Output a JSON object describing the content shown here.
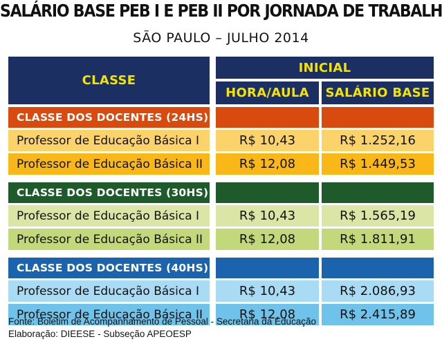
{
  "header": {
    "title": "SALÁRIO BASE PEB I E PEB II POR JORNADA DE TRABALHO",
    "subtitle": "SÃO PAULO – JULHO 2014"
  },
  "table": {
    "col_classe": "CLASSE",
    "col_inicial": "INICIAL",
    "col_hora_aula": "HORA/AULA",
    "col_salario_base": "SALÁRIO BASE"
  },
  "colors": {
    "header_bg": "#1c2f63",
    "header_text": "#f4e400"
  },
  "chart_data": {
    "type": "table",
    "title": "SALÁRIO BASE PEB I E PEB II POR JORNADA DE TRABALHO",
    "subtitle": "SÃO PAULO – JULHO 2014",
    "columns": [
      "CLASSE",
      "HORA/AULA",
      "SALÁRIO BASE"
    ],
    "groups": [
      {
        "name": "CLASSE DOS DOCENTES (24HS)",
        "color": "#d94a0e",
        "row_colors": [
          "#fbd36a",
          "#f9b718"
        ],
        "rows": [
          {
            "label": "Professor de Educação Básica I",
            "hora_aula": "R$ 10,43",
            "salario_base": "R$ 1.252,16"
          },
          {
            "label": "Professor de Educação Básica II",
            "hora_aula": "R$ 12,08",
            "salario_base": "R$ 1.449,53"
          }
        ]
      },
      {
        "name": "CLASSE DOS DOCENTES (30HS)",
        "color": "#1e5a2a",
        "row_colors": [
          "#dbe6a6",
          "#c3d87a"
        ],
        "rows": [
          {
            "label": "Professor de Educação Básica I",
            "hora_aula": "R$ 10,43",
            "salario_base": "R$ 1.565,19"
          },
          {
            "label": "Professor de Educação Básica II",
            "hora_aula": "R$ 12,08",
            "salario_base": "R$ 1.811,91"
          }
        ]
      },
      {
        "name": "CLASSE DOS DOCENTES (40HS)",
        "color": "#1c63ad",
        "row_colors": [
          "#a9dcf4",
          "#6fc2ea"
        ],
        "rows": [
          {
            "label": "Professor de Educação Básica I",
            "hora_aula": "R$ 10,43",
            "salario_base": "R$ 2.086,93"
          },
          {
            "label": "Professor de Educação Básica II",
            "hora_aula": "R$ 12,08",
            "salario_base": "R$ 2.415,89"
          }
        ]
      }
    ]
  },
  "footer": {
    "source": "Fonte: Boletim de Acompanhamento de Pessoal - Secretaria da Educação",
    "credit": "Elaboração: DIEESE - Subseção APEOESP"
  }
}
